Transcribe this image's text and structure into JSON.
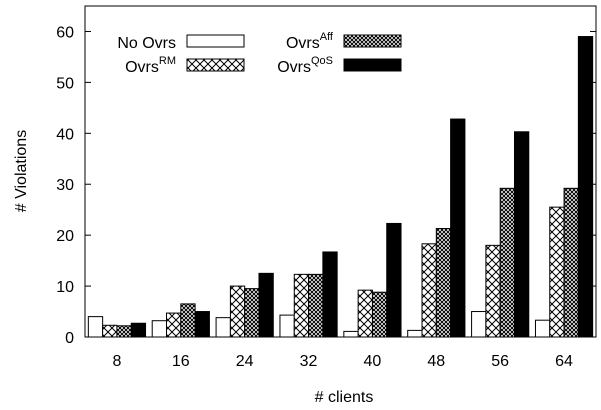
{
  "chart_data": {
    "type": "bar",
    "xlabel": "# clients",
    "ylabel": "# Violations",
    "ylim": [
      0,
      65
    ],
    "yticks": [
      0,
      10,
      20,
      30,
      40,
      50,
      60
    ],
    "categories": [
      "8",
      "16",
      "24",
      "32",
      "40",
      "48",
      "56",
      "64"
    ],
    "legend_position": "top-left",
    "series": [
      {
        "name": "No Ovrs",
        "name_base": "No Ovrs",
        "name_sup": "",
        "pattern": "white",
        "values": [
          4,
          3.2,
          3.8,
          4.3,
          1.1,
          1.3,
          5,
          3.3
        ]
      },
      {
        "name": "OvrsRM",
        "name_base": "Ovrs",
        "name_sup": "RM",
        "pattern": "crosshatch-light",
        "values": [
          2.3,
          4.7,
          10,
          12.3,
          9.2,
          18.3,
          18,
          25.5
        ]
      },
      {
        "name": "OvrsAff",
        "name_base": "Ovrs",
        "name_sup": "Aff",
        "pattern": "crosshatch-dense",
        "values": [
          2.2,
          6.5,
          9.5,
          12.3,
          8.8,
          21.3,
          29.2,
          29.2
        ]
      },
      {
        "name": "OvrsQoS",
        "name_base": "Ovrs",
        "name_sup": "QoS",
        "pattern": "black",
        "values": [
          2.7,
          5,
          12.5,
          16.7,
          22.3,
          42.8,
          40.3,
          59
        ]
      }
    ]
  }
}
